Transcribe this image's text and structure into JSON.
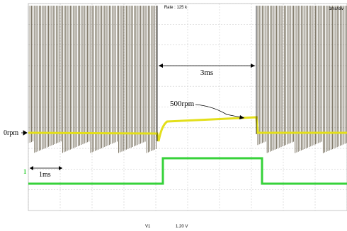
{
  "header": {
    "rate": "Rate : 125 k",
    "timebase": "1ms/div"
  },
  "annotations": {
    "duration": "3ms",
    "speed": "500rpm",
    "zero": "0rpm",
    "scale": "1ms",
    "channel_marker": "1"
  },
  "footer": {
    "channel": "V1",
    "level": "1.20 V"
  }
}
